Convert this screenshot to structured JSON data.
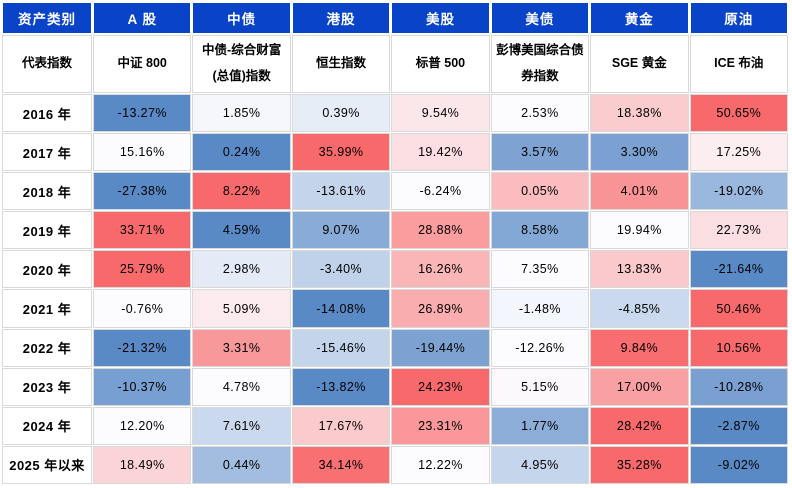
{
  "chart_data": {
    "type": "table",
    "corner_label": "资产类别",
    "index_row_label": "代表指数",
    "columns": [
      "A 股",
      "中债",
      "港股",
      "美股",
      "美债",
      "黄金",
      "原油"
    ],
    "indices": [
      "中证 800",
      "中债-综合财富\n(总值)指数",
      "恒生指数",
      "标普 500",
      "彭博美国综合债\n券指数",
      "SGE 黄金",
      "ICE 布油"
    ],
    "unit": "%",
    "rows": [
      {
        "year": "2016 年",
        "values": [
          -13.27,
          1.85,
          0.39,
          9.54,
          2.53,
          18.38,
          50.65
        ]
      },
      {
        "year": "2017 年",
        "values": [
          15.16,
          0.24,
          35.99,
          19.42,
          3.57,
          3.3,
          17.25
        ]
      },
      {
        "year": "2018 年",
        "values": [
          -27.38,
          8.22,
          -13.61,
          -6.24,
          0.05,
          4.01,
          -19.02
        ]
      },
      {
        "year": "2019 年",
        "values": [
          33.71,
          4.59,
          9.07,
          28.88,
          8.58,
          19.94,
          22.73
        ]
      },
      {
        "year": "2020 年",
        "values": [
          25.79,
          2.98,
          -3.4,
          16.26,
          7.35,
          13.83,
          -21.64
        ]
      },
      {
        "year": "2021 年",
        "values": [
          -0.76,
          5.09,
          -14.08,
          26.89,
          -1.48,
          -4.85,
          50.46
        ]
      },
      {
        "year": "2022 年",
        "values": [
          -21.32,
          3.31,
          -15.46,
          -19.44,
          -12.26,
          9.84,
          10.56
        ]
      },
      {
        "year": "2023 年",
        "values": [
          -10.37,
          4.78,
          -13.82,
          24.23,
          5.15,
          17.0,
          -10.28
        ]
      },
      {
        "year": "2024 年",
        "values": [
          12.2,
          7.61,
          17.67,
          23.31,
          1.77,
          28.42,
          -2.87
        ]
      },
      {
        "year": "2025 年以来",
        "values": [
          18.49,
          0.44,
          34.14,
          12.22,
          4.95,
          35.28,
          -9.02
        ]
      }
    ],
    "heatmap": {
      "scale": "row-wise min-median-max",
      "min_color": "#5A8AC6",
      "mid_color": "#FCFCFF",
      "max_color": "#F8696B"
    },
    "colors": {
      "header_bg": "#0843C8",
      "header_text": "#FFFFFF",
      "body_text": "#000000",
      "gridline": "#D9D9D9",
      "background": "#FFFFFF"
    }
  }
}
